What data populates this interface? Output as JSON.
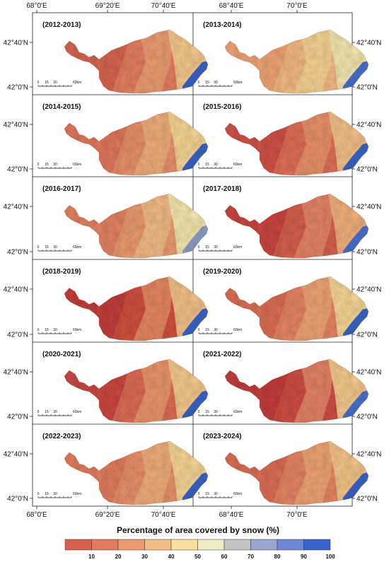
{
  "top_lon_labels": [
    "68°0'E",
    "69°20'E",
    "70°40'E",
    "68°40'E",
    "70°0'E"
  ],
  "bottom_lon_labels": [
    "68°0'E",
    "69°20'E",
    "70°40'E",
    "68°40'E",
    "70°0'E"
  ],
  "lat_labels": [
    "42°40'N",
    "42°0'N"
  ],
  "scale_bar": {
    "ticks": [
      "0",
      "15",
      "30"
    ],
    "end_label": "60km"
  },
  "panels": [
    {
      "year": "(2012-2013)",
      "colors": [
        "#d6604d",
        "#e47e61",
        "#eda072",
        "#f5c88c",
        "#3a63c9"
      ]
    },
    {
      "year": "(2013-2014)",
      "colors": [
        "#eda072",
        "#f3b983",
        "#f6d595",
        "#f4e7ae",
        "#4a6fcf"
      ]
    },
    {
      "year": "(2014-2015)",
      "colors": [
        "#e0745a",
        "#e8906a",
        "#f1b07c",
        "#f6d595",
        "#3a63c9"
      ]
    },
    {
      "year": "(2015-2016)",
      "colors": [
        "#cf4e44",
        "#df6f57",
        "#ea956c",
        "#f3c088",
        "#3a63c9"
      ]
    },
    {
      "year": "(2016-2017)",
      "colors": [
        "#e47e61",
        "#eb9a6e",
        "#f3bf88",
        "#f4e7ae",
        "#8e9dc4"
      ]
    },
    {
      "year": "(2017-2018)",
      "colors": [
        "#c9423f",
        "#d6604d",
        "#e6886a",
        "#f1b07c",
        "#4a6fcf"
      ]
    },
    {
      "year": "(2018-2019)",
      "colors": [
        "#c23b3c",
        "#d0513f",
        "#e88c66",
        "#f3c088",
        "#3a63c9"
      ]
    },
    {
      "year": "(2019-2020)",
      "colors": [
        "#db6a52",
        "#e58564",
        "#eea676",
        "#f6d595",
        "#3a63c9"
      ]
    },
    {
      "year": "(2020-2021)",
      "colors": [
        "#c9423f",
        "#dc6c55",
        "#eb9a6e",
        "#f5c88c",
        "#3a63c9"
      ]
    },
    {
      "year": "(2021-2022)",
      "colors": [
        "#c23b3c",
        "#cf4e44",
        "#e6886a",
        "#f5c88c",
        "#4a6fcf"
      ]
    },
    {
      "year": "(2022-2023)",
      "colors": [
        "#e07a5c",
        "#e8906a",
        "#f1b07c",
        "#f6d595",
        "#3a63c9"
      ]
    },
    {
      "year": "(2023-2024)",
      "colors": [
        "#db6a52",
        "#e58564",
        "#eea676",
        "#f4c488",
        "#3a63c9"
      ]
    }
  ],
  "legend": {
    "title": "Percentage of area covered by snow (%)",
    "colors": [
      "#d6604d",
      "#e27a5e",
      "#eb9a6e",
      "#f3bb85",
      "#f7dfa0",
      "#eeecc6",
      "#c3c3c3",
      "#9aa6cf",
      "#6e86d3",
      "#3a63c9"
    ],
    "ticks": [
      "10",
      "20",
      "30",
      "40",
      "50",
      "60",
      "70",
      "80",
      "90",
      "100"
    ]
  }
}
